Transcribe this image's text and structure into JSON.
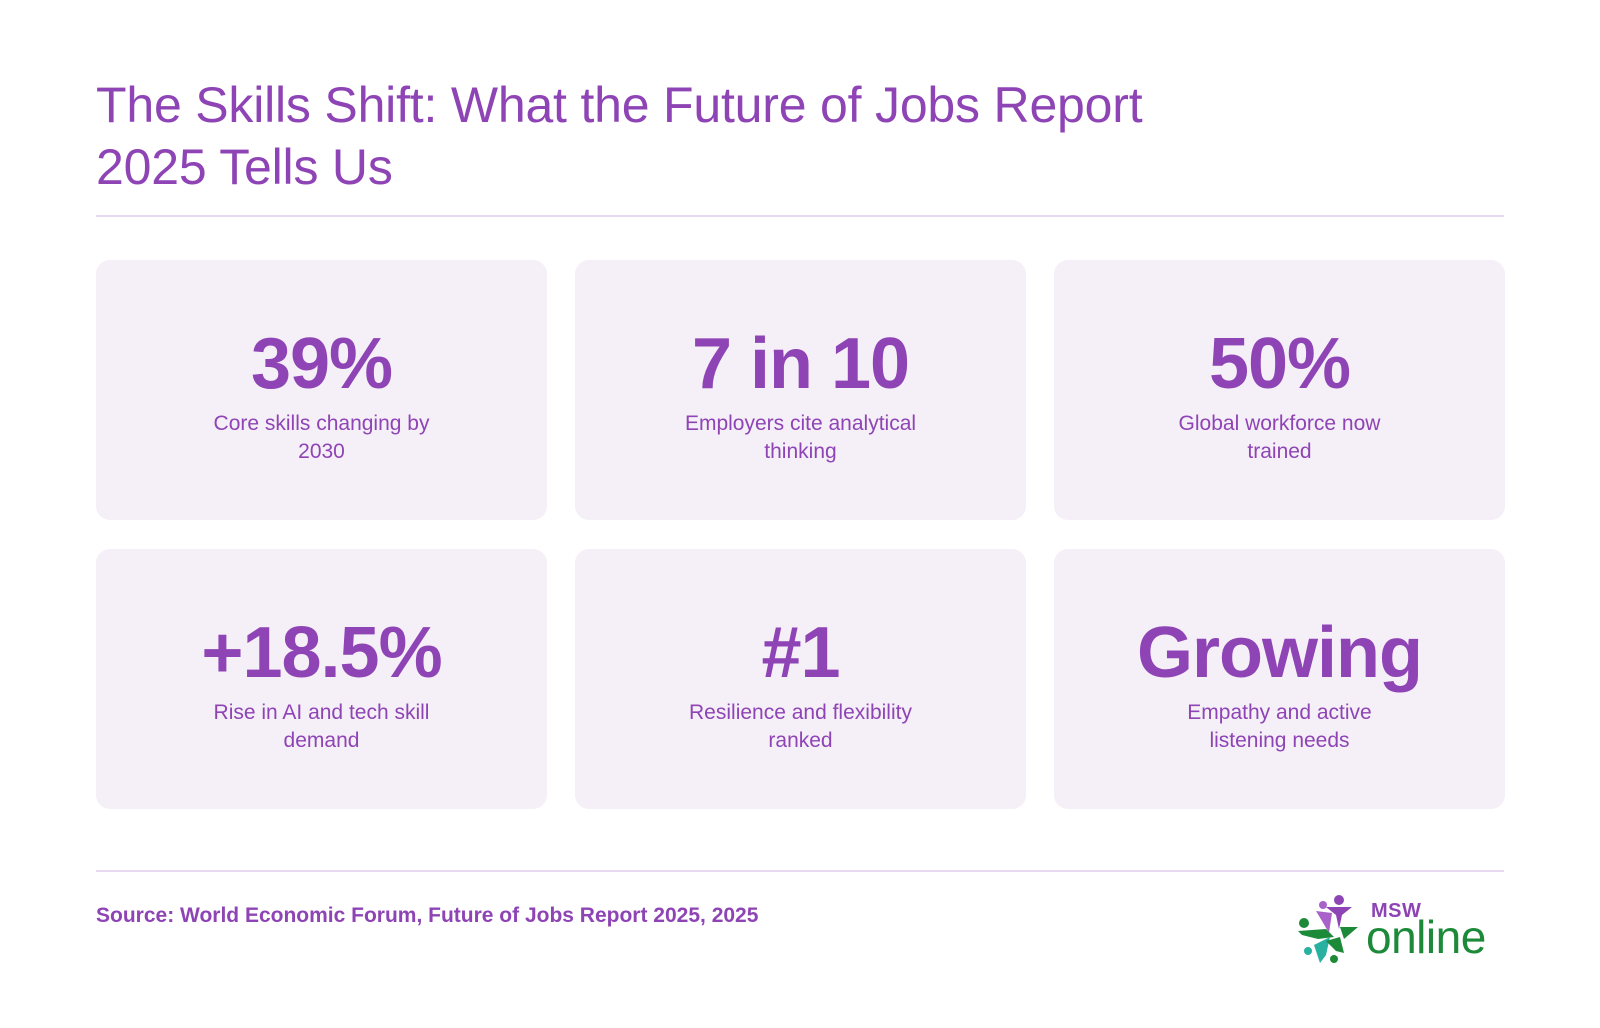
{
  "header": {
    "title": "The Skills Shift: What the Future of Jobs Report 2025 Tells Us"
  },
  "stats": [
    {
      "value": "39%",
      "label": "Core skills changing by 2030"
    },
    {
      "value": "7 in 10",
      "label": "Employers cite analytical thinking"
    },
    {
      "value": "50%",
      "label": "Global workforce now trained"
    },
    {
      "value": "+18.5%",
      "label": "Rise in AI and tech skill demand"
    },
    {
      "value": "#1",
      "label": "Resilience and flexibility ranked"
    },
    {
      "value": "Growing",
      "label": "Empathy and active listening needs"
    }
  ],
  "footer": {
    "source": "Source: World Economic Forum, Future of Jobs Report 2025, 2025",
    "logo": {
      "small_text": "MSW",
      "big_text": "online",
      "icon": "star-people-icon"
    }
  },
  "colors": {
    "accent": "#8e44b5",
    "card_background": "#f5eff7",
    "divider": "#e9d8f1",
    "logo_green": "#1d8a3a",
    "logo_teal": "#28b0a0"
  }
}
